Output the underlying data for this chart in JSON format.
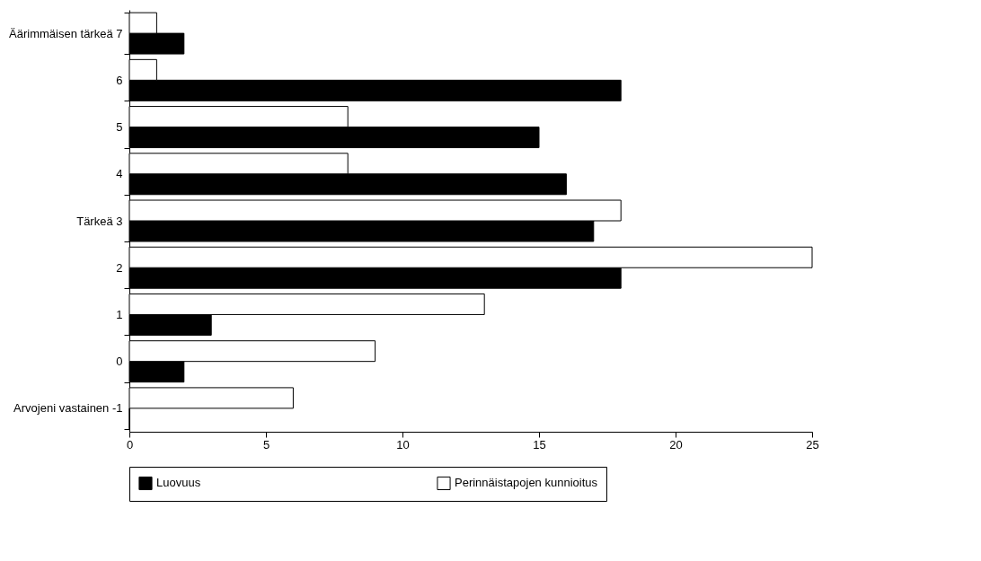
{
  "chart_data": {
    "type": "bar",
    "orientation": "horizontal",
    "categories": [
      "Äärimmäisen tärkeä  7",
      "6",
      "5",
      "4",
      "Tärkeä  3",
      "2",
      "1",
      "0",
      "Arvojeni vastainen  -1"
    ],
    "series": [
      {
        "name": "Luovuus",
        "color": "#000000",
        "values": [
          2,
          18,
          15,
          16,
          17,
          18,
          3,
          2,
          0
        ]
      },
      {
        "name": "Perinnäistapojen kunnioitus",
        "color": "#ffffff",
        "values": [
          1,
          1,
          8,
          8,
          18,
          25,
          13,
          9,
          6
        ]
      }
    ],
    "xlim": [
      0,
      25
    ],
    "xticks": [
      0,
      5,
      10,
      15,
      20,
      25
    ],
    "grid": false,
    "legend": "bottom"
  }
}
